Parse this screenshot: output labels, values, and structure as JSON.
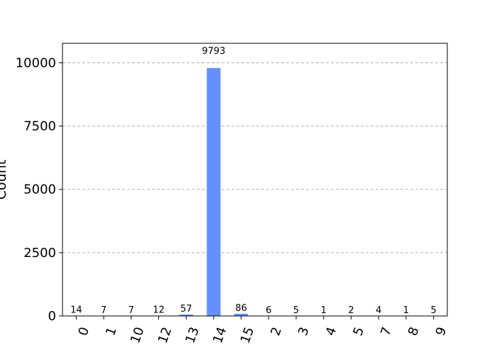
{
  "chart_data": {
    "type": "bar",
    "ylabel": "Count",
    "categories": [
      "0",
      "1",
      "10",
      "12",
      "13",
      "14",
      "15",
      "2",
      "3",
      "4",
      "5",
      "7",
      "8",
      "9"
    ],
    "values": [
      14,
      7,
      7,
      12,
      57,
      9793,
      86,
      6,
      5,
      1,
      2,
      4,
      1,
      5
    ],
    "data_labels": [
      "14",
      "7",
      "7",
      "12",
      "57",
      "9793",
      "86",
      "6",
      "5",
      "1",
      "2",
      "4",
      "1",
      "5"
    ],
    "ylim": [
      0,
      10770
    ],
    "yticks": [
      0,
      2500,
      5000,
      7500,
      10000
    ],
    "ytick_labels": [
      "0",
      "2500",
      "5000",
      "7500",
      "10000"
    ],
    "grid": "horizontal dashed",
    "bar_color": "#648fff",
    "grid_color": "#b0b0b0",
    "xtick_rotation_deg": -70
  }
}
